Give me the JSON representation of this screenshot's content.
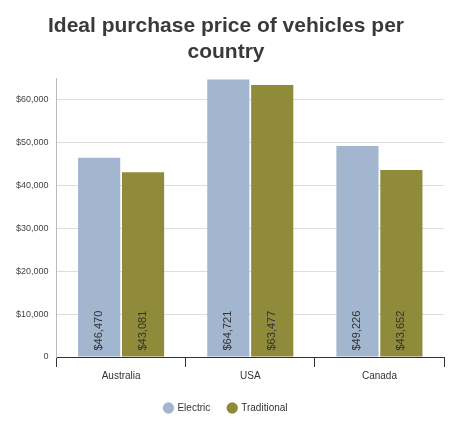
{
  "chart_data": {
    "type": "bar",
    "title": "Ideal purchase price of vehicles per country",
    "categories": [
      "Australia",
      "USA",
      "Canada"
    ],
    "series": [
      {
        "name": "Electric",
        "color": "#a3b6cf",
        "values": [
          46470,
          64721,
          49226
        ],
        "value_labels": [
          "$46,470",
          "$64,721",
          "$49,226"
        ]
      },
      {
        "name": "Traditional",
        "color": "#8f8b3a",
        "values": [
          43081,
          63477,
          43652
        ],
        "value_labels": [
          "$43,081",
          "$63,477",
          "$43,652"
        ]
      }
    ],
    "ylim": [
      0,
      65000
    ],
    "yticks": [
      0,
      {
        "value": 10000,
        "label": "$10,000"
      },
      {
        "value": 20000,
        "label": "$20,000"
      },
      {
        "value": 30000,
        "label": "$30,000"
      },
      {
        "value": 40000,
        "label": "$40,000"
      },
      {
        "value": 50000,
        "label": "$50,000"
      },
      {
        "value": 60000,
        "label": "$60,000"
      }
    ],
    "grid": true,
    "legend": "bottom",
    "data_labels": true
  }
}
